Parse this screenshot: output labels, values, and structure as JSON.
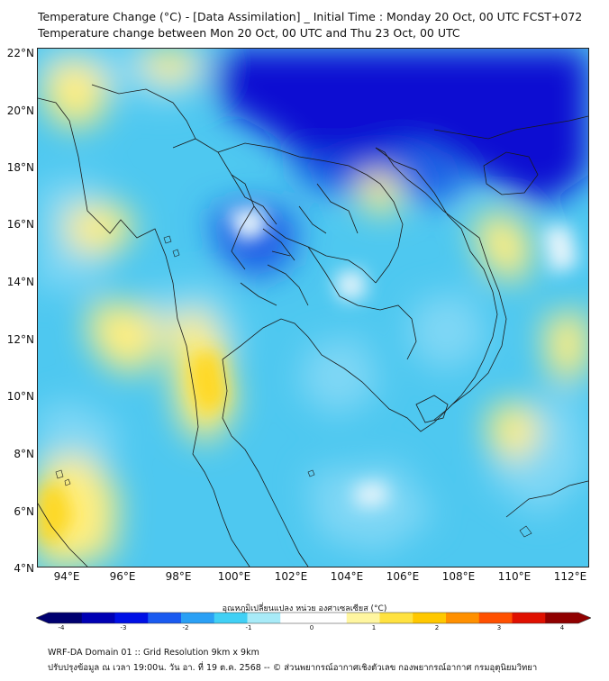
{
  "title": {
    "line1": "Temperature Change (°C) - [Data Assimilation] _ Initial Time : Monday 20 Oct, 00 UTC FCST+072",
    "line2": "Temperature change between Mon 20 Oct, 00 UTC and Thu 23 Oct, 00 UTC"
  },
  "map": {
    "lat_labels": [
      "22°N",
      "20°N",
      "18°N",
      "16°N",
      "14°N",
      "12°N",
      "10°N",
      "8°N",
      "6°N",
      "4°N"
    ],
    "lon_labels": [
      "94°E",
      "96°E",
      "98°E",
      "100°E",
      "102°E",
      "104°E",
      "106°E",
      "108°E",
      "110°E",
      "112°E"
    ],
    "colors": {
      "background": "#4ec8f0",
      "deep_blue": "#0a0ad2",
      "mid_blue": "#1e5ce6",
      "light_blue": "#7fd7f5",
      "pale": "#e8f5fb",
      "yellow": "#ffee80",
      "deep_yellow": "#ffd820",
      "boundary": "#1a1a1a"
    }
  },
  "colorbar": {
    "label": "อุณหภูมิเปลี่ยนแปลง หน่วย องศาเซลเซียส (°C)",
    "ticks": [
      "-4",
      "-3",
      "-2",
      "-1",
      "0",
      "1",
      "2",
      "3",
      "4"
    ],
    "colors": [
      "#000070",
      "#0000b4",
      "#0010e6",
      "#1a5af0",
      "#2aa0f5",
      "#40d0f5",
      "#a8ebf8",
      "#ffffff",
      "#ffffff",
      "#fff6a0",
      "#ffe240",
      "#ffc800",
      "#ff9000",
      "#ff5000",
      "#e01000",
      "#900000"
    ]
  },
  "footer": {
    "line1": "WRF-DA Domain 01 :: Grid Resolution 9km x 9km",
    "line2": "ปรับปรุงข้อมูล ณ เวลา 19:00น. วัน อา. ที่ 19 ต.ค. 2568 -- © ส่วนพยากรณ์อากาศเชิงตัวเลข กองพยากรณ์อากาศ กรมอุตุนิยมวิทยา"
  }
}
